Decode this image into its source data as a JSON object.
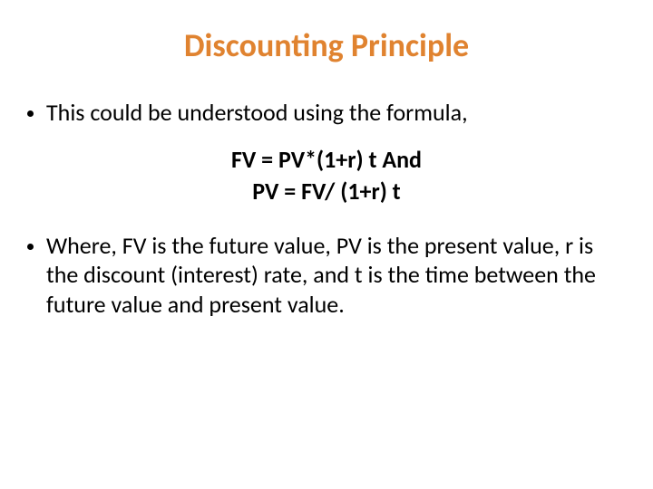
{
  "title": {
    "text": "Discounting Principle",
    "color": "#e08330",
    "fontsize": 36
  },
  "body": {
    "fontsize": 26,
    "color": "#000000",
    "bullet_color": "#000000"
  },
  "bullets": [
    {
      "text": "This could be understood using the formula,"
    },
    {
      "text": "Where, FV is the future value, PV is the present value, r is the discount (interest) rate, and t is the time between the future value and present value."
    }
  ],
  "formula": {
    "fontsize": 26,
    "line1": "FV = PV*(1+r) t   And",
    "line2": "PV = FV/ (1+r) t"
  }
}
